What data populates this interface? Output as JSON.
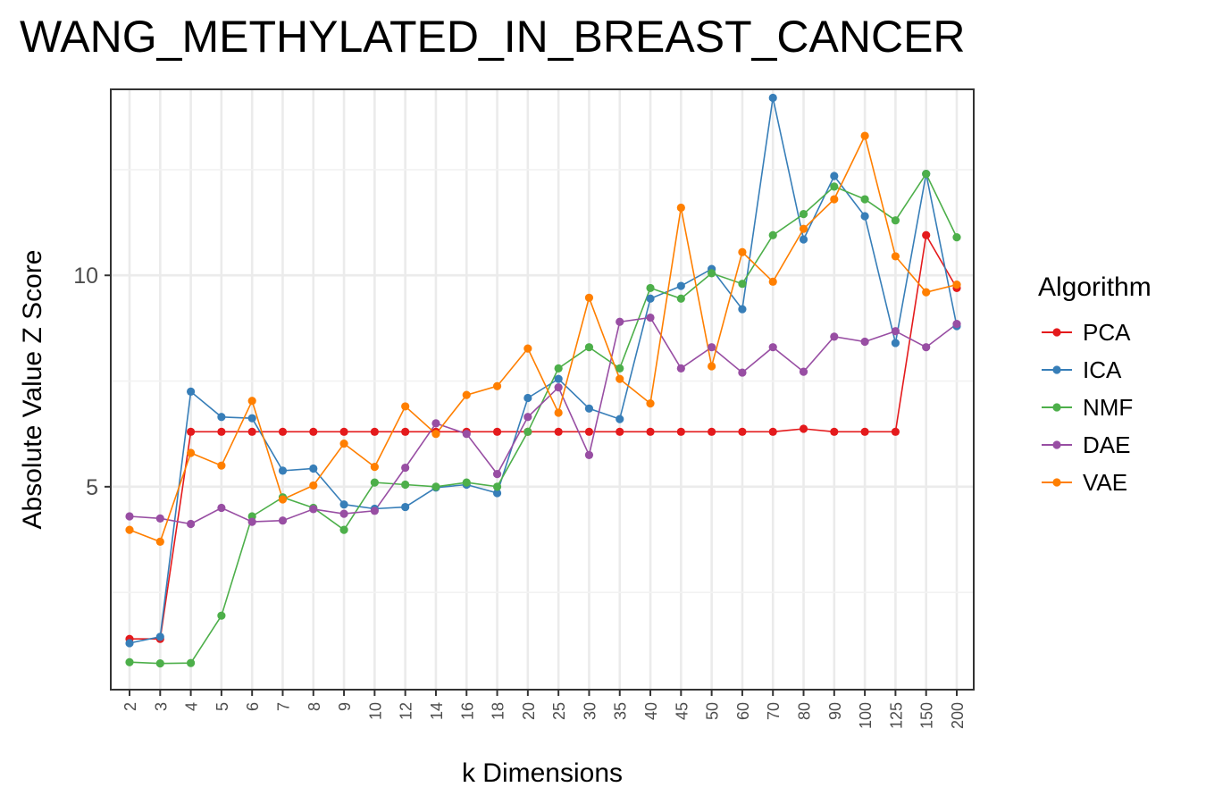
{
  "title": "WANG_METHYLATED_IN_BREAST_CANCER",
  "legend": {
    "title": "Algorithm",
    "items": [
      {
        "label": "PCA",
        "color": "#E41A1C"
      },
      {
        "label": "ICA",
        "color": "#377EB8"
      },
      {
        "label": "NMF",
        "color": "#4DAF4A"
      },
      {
        "label": "DAE",
        "color": "#984EA3"
      },
      {
        "label": "VAE",
        "color": "#FF7F00"
      }
    ]
  },
  "chart_data": {
    "type": "line",
    "title": "WANG_METHYLATED_IN_BREAST_CANCER",
    "xlabel": "k Dimensions",
    "ylabel": "Absolute Value Z Score",
    "categories": [
      "2",
      "3",
      "4",
      "5",
      "6",
      "7",
      "8",
      "9",
      "10",
      "12",
      "14",
      "16",
      "18",
      "20",
      "25",
      "30",
      "35",
      "40",
      "45",
      "50",
      "60",
      "70",
      "80",
      "90",
      "100",
      "125",
      "150",
      "200"
    ],
    "ylim": [
      0.2,
      14.4
    ],
    "yticks": [
      5,
      10
    ],
    "grid": true,
    "legend_position": "right",
    "series": [
      {
        "name": "PCA",
        "color": "#E41A1C",
        "values": [
          1.4,
          1.4,
          6.3,
          6.3,
          6.3,
          6.3,
          6.3,
          6.3,
          6.3,
          6.3,
          6.3,
          6.3,
          6.3,
          6.3,
          6.3,
          6.3,
          6.3,
          6.3,
          6.3,
          6.3,
          6.3,
          6.3,
          6.37,
          6.3,
          6.3,
          6.3,
          10.95,
          9.7
        ]
      },
      {
        "name": "ICA",
        "color": "#377EB8",
        "values": [
          1.3,
          1.45,
          7.25,
          6.65,
          6.62,
          5.38,
          5.43,
          4.58,
          4.48,
          4.52,
          4.98,
          5.05,
          4.85,
          7.1,
          7.55,
          6.85,
          6.6,
          9.45,
          9.75,
          10.15,
          9.2,
          14.2,
          10.85,
          12.35,
          11.4,
          8.4,
          12.4,
          8.8
        ]
      },
      {
        "name": "NMF",
        "color": "#4DAF4A",
        "values": [
          0.85,
          0.82,
          0.83,
          1.95,
          4.3,
          4.75,
          4.5,
          3.98,
          5.1,
          5.05,
          5.0,
          5.1,
          5.0,
          6.3,
          7.8,
          8.3,
          7.8,
          9.7,
          9.45,
          10.05,
          9.8,
          10.95,
          11.45,
          12.1,
          11.8,
          11.3,
          12.4,
          10.9
        ]
      },
      {
        "name": "DAE",
        "color": "#984EA3",
        "values": [
          4.3,
          4.25,
          4.12,
          4.5,
          4.17,
          4.2,
          4.47,
          4.36,
          4.43,
          5.45,
          6.5,
          6.25,
          5.3,
          6.65,
          7.35,
          5.75,
          8.9,
          9.0,
          7.8,
          8.3,
          7.7,
          8.3,
          7.72,
          8.55,
          8.43,
          8.68,
          8.3,
          8.85
        ]
      },
      {
        "name": "VAE",
        "color": "#FF7F00",
        "values": [
          3.98,
          3.7,
          5.8,
          5.5,
          7.03,
          4.7,
          5.03,
          6.02,
          5.47,
          6.9,
          6.25,
          7.17,
          7.38,
          8.27,
          6.75,
          9.47,
          7.55,
          6.97,
          11.6,
          7.85,
          10.55,
          9.85,
          11.1,
          11.8,
          13.3,
          10.45,
          9.6,
          9.78
        ]
      }
    ]
  }
}
